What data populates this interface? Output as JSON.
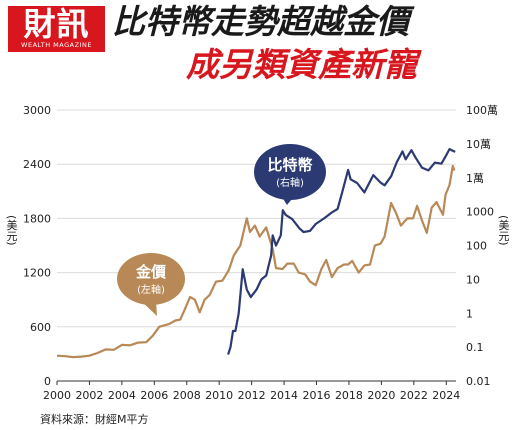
{
  "brand": {
    "name": "財訊",
    "tagline": "WEALTH MAGAZINE"
  },
  "title": "比特幣走勢超越金價",
  "subtitle": "成另類資產新寵",
  "source": "資料來源：財經M平方",
  "colors": {
    "gold": "#b88956",
    "bitcoin": "#2b3a73",
    "title_red": "#d7161e",
    "grid": "#dcdcdc"
  },
  "chart_data": {
    "type": "line",
    "x_ticks": [
      "2000",
      "2002",
      "2004",
      "2006",
      "2008",
      "2010",
      "2012",
      "2014",
      "2016",
      "2018",
      "2020",
      "2022",
      "2024"
    ],
    "xlim": [
      2000,
      2024.6
    ],
    "left_axis": {
      "label": "(美元)",
      "ticks": [
        "0",
        "600",
        "1200",
        "1800",
        "2400",
        "3000"
      ],
      "ylim": [
        0,
        3000
      ]
    },
    "right_axis": {
      "label": "(美元)",
      "ticks": [
        "0.01",
        "0.1",
        "1",
        "10",
        "100",
        "1000",
        "1萬",
        "10萬",
        "100萬"
      ],
      "scale": "log",
      "ylim": [
        0.01,
        1000000
      ]
    },
    "annotations": [
      {
        "series": "gold",
        "title": "金價",
        "note": "(左軸)"
      },
      {
        "series": "bitcoin",
        "title": "比特幣",
        "note": "(右軸)"
      }
    ],
    "series": [
      {
        "key": "gold",
        "axis": "left",
        "color": "#b88956",
        "points": [
          [
            2000.0,
            280
          ],
          [
            2000.5,
            275
          ],
          [
            2001.0,
            265
          ],
          [
            2001.5,
            270
          ],
          [
            2002.0,
            280
          ],
          [
            2002.5,
            310
          ],
          [
            2003.0,
            350
          ],
          [
            2003.5,
            345
          ],
          [
            2004.0,
            400
          ],
          [
            2004.5,
            395
          ],
          [
            2005.0,
            425
          ],
          [
            2005.5,
            430
          ],
          [
            2005.9,
            500
          ],
          [
            2006.3,
            600
          ],
          [
            2006.5,
            610
          ],
          [
            2006.9,
            630
          ],
          [
            2007.3,
            670
          ],
          [
            2007.6,
            680
          ],
          [
            2007.9,
            800
          ],
          [
            2008.2,
            930
          ],
          [
            2008.5,
            900
          ],
          [
            2008.8,
            760
          ],
          [
            2009.1,
            900
          ],
          [
            2009.4,
            950
          ],
          [
            2009.8,
            1100
          ],
          [
            2010.2,
            1110
          ],
          [
            2010.6,
            1230
          ],
          [
            2010.9,
            1390
          ],
          [
            2011.3,
            1500
          ],
          [
            2011.7,
            1800
          ],
          [
            2011.9,
            1650
          ],
          [
            2012.2,
            1720
          ],
          [
            2012.5,
            1600
          ],
          [
            2012.9,
            1700
          ],
          [
            2013.3,
            1460
          ],
          [
            2013.5,
            1250
          ],
          [
            2013.9,
            1240
          ],
          [
            2014.2,
            1300
          ],
          [
            2014.6,
            1300
          ],
          [
            2014.9,
            1200
          ],
          [
            2015.3,
            1180
          ],
          [
            2015.6,
            1100
          ],
          [
            2015.95,
            1060
          ],
          [
            2016.3,
            1240
          ],
          [
            2016.6,
            1340
          ],
          [
            2016.95,
            1150
          ],
          [
            2017.3,
            1250
          ],
          [
            2017.7,
            1290
          ],
          [
            2017.95,
            1290
          ],
          [
            2018.2,
            1330
          ],
          [
            2018.6,
            1200
          ],
          [
            2018.95,
            1280
          ],
          [
            2019.3,
            1290
          ],
          [
            2019.6,
            1500
          ],
          [
            2019.95,
            1520
          ],
          [
            2020.2,
            1600
          ],
          [
            2020.6,
            1970
          ],
          [
            2020.9,
            1860
          ],
          [
            2021.2,
            1720
          ],
          [
            2021.6,
            1800
          ],
          [
            2021.95,
            1800
          ],
          [
            2022.2,
            1940
          ],
          [
            2022.5,
            1780
          ],
          [
            2022.8,
            1640
          ],
          [
            2023.1,
            1920
          ],
          [
            2023.4,
            1980
          ],
          [
            2023.8,
            1840
          ],
          [
            2023.95,
            2060
          ],
          [
            2024.2,
            2170
          ],
          [
            2024.4,
            2380
          ],
          [
            2024.5,
            2330
          ]
        ]
      },
      {
        "key": "bitcoin",
        "axis": "right",
        "color": "#2b3a73",
        "points": [
          [
            2010.55,
            0.06
          ],
          [
            2010.7,
            0.1
          ],
          [
            2010.85,
            0.3
          ],
          [
            2011.0,
            0.3
          ],
          [
            2011.2,
            1
          ],
          [
            2011.45,
            20
          ],
          [
            2011.7,
            5
          ],
          [
            2011.95,
            3
          ],
          [
            2012.3,
            5
          ],
          [
            2012.6,
            10
          ],
          [
            2012.9,
            13
          ],
          [
            2013.2,
            50
          ],
          [
            2013.3,
            200
          ],
          [
            2013.5,
            100
          ],
          [
            2013.8,
            200
          ],
          [
            2013.92,
            1100
          ],
          [
            2014.1,
            800
          ],
          [
            2014.5,
            600
          ],
          [
            2014.95,
            320
          ],
          [
            2015.2,
            250
          ],
          [
            2015.6,
            270
          ],
          [
            2015.95,
            430
          ],
          [
            2016.5,
            650
          ],
          [
            2016.95,
            950
          ],
          [
            2017.3,
            1200
          ],
          [
            2017.6,
            4000
          ],
          [
            2017.95,
            17000
          ],
          [
            2018.1,
            9000
          ],
          [
            2018.5,
            7000
          ],
          [
            2018.95,
            3700
          ],
          [
            2019.5,
            12000
          ],
          [
            2019.95,
            7200
          ],
          [
            2020.2,
            6000
          ],
          [
            2020.6,
            11000
          ],
          [
            2020.95,
            29000
          ],
          [
            2021.3,
            60000
          ],
          [
            2021.5,
            35000
          ],
          [
            2021.85,
            65000
          ],
          [
            2022.1,
            40000
          ],
          [
            2022.5,
            20000
          ],
          [
            2022.9,
            16500
          ],
          [
            2023.3,
            28000
          ],
          [
            2023.7,
            26000
          ],
          [
            2023.95,
            42000
          ],
          [
            2024.2,
            70000
          ],
          [
            2024.4,
            63000
          ],
          [
            2024.55,
            58000
          ]
        ]
      }
    ]
  }
}
